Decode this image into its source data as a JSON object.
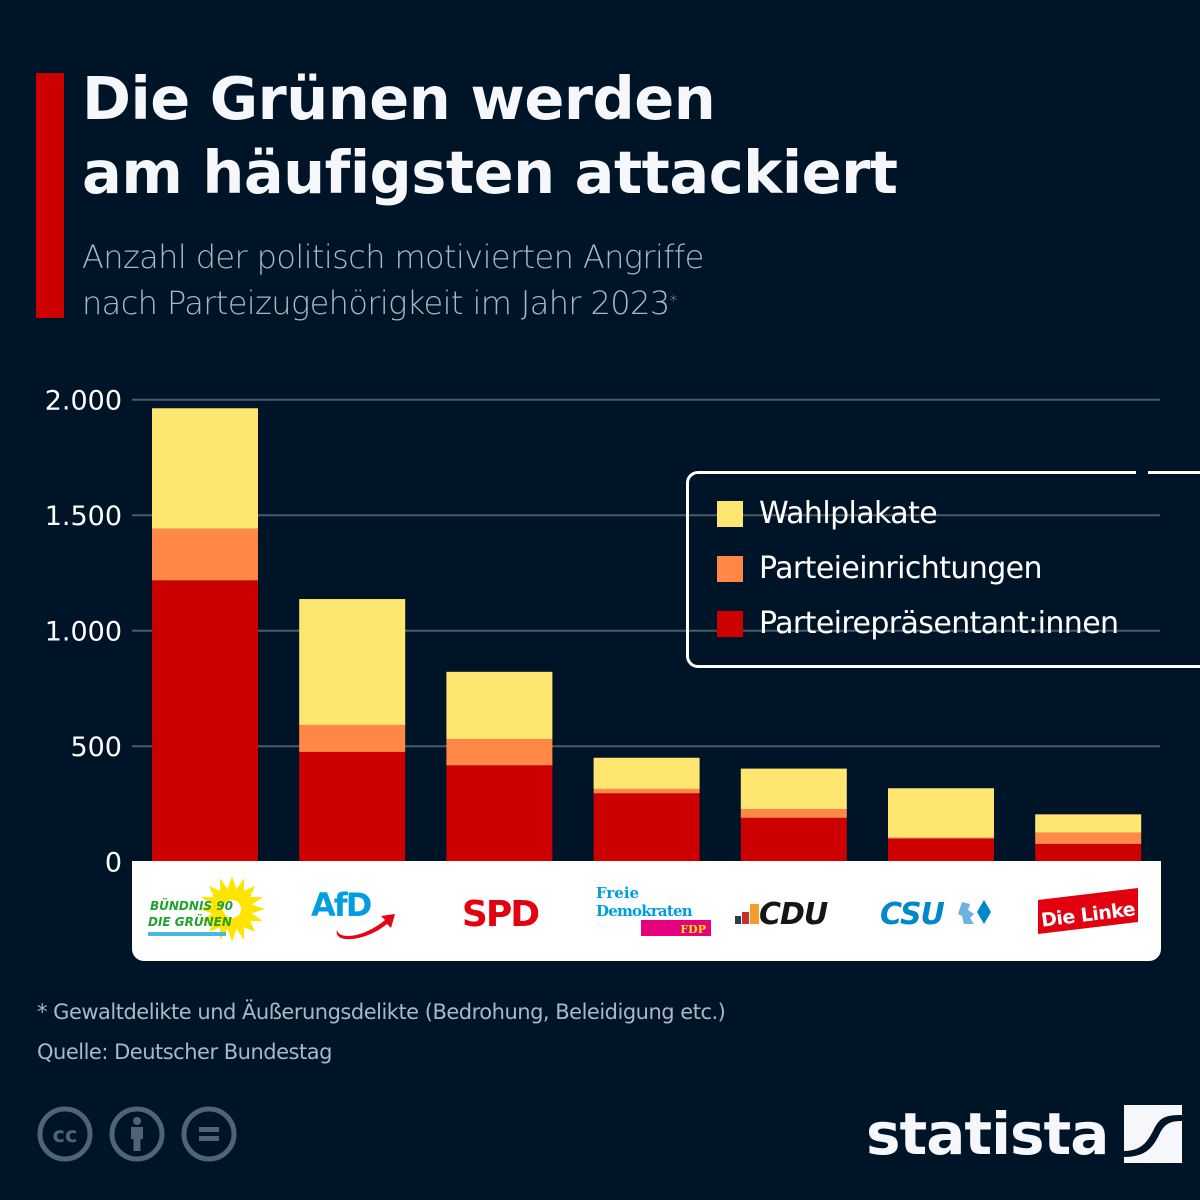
{
  "header": {
    "title_line1": "Die Grünen werden",
    "title_line2": "am häufigsten attackiert",
    "subtitle_line1": "Anzahl der politisch motivierten Angriffe",
    "subtitle_line2": "nach Parteizugehörigkeit im Jahr 2023",
    "subtitle_marker": "*"
  },
  "colors": {
    "background": "#001428",
    "accent": "#cc0000",
    "wahlplakate": "#ffe671",
    "parteieinrichtungen": "#ff8846",
    "parteireprasentanten": "#cc0000",
    "grid": "#4c5a68",
    "muted_text": "#a8b8c6"
  },
  "chart_data": {
    "type": "bar",
    "stacked": true,
    "title": "Die Grünen werden am häufigsten attackiert",
    "subtitle": "Anzahl der politisch motivierten Angriffe nach Parteizugehörigkeit im Jahr 2023*",
    "xlabel": "",
    "ylabel": "",
    "ylim": [
      0,
      2000
    ],
    "yticks": [
      0,
      500,
      1000,
      1500,
      2000
    ],
    "ytick_labels": [
      "0",
      "500",
      "1.000",
      "1.500",
      "2.000"
    ],
    "grid": true,
    "legend_position": "top-right",
    "categories": [
      "Bündnis 90 / Die Grünen",
      "AfD",
      "SPD",
      "FDP",
      "CDU",
      "CSU",
      "Die Linke"
    ],
    "series": [
      {
        "name": "Parteirepräsentant:innen",
        "color": "#cc0000",
        "values": [
          1218,
          475,
          417,
          296,
          190,
          100,
          77
        ]
      },
      {
        "name": "Parteieinrichtungen",
        "color": "#ff8846",
        "values": [
          224,
          117,
          114,
          19,
          38,
          4,
          49
        ]
      },
      {
        "name": "Wahlplakate",
        "color": "#ffe671",
        "values": [
          521,
          545,
          291,
          135,
          175,
          214,
          79
        ]
      }
    ]
  },
  "legend": {
    "items": [
      {
        "label": "Wahlplakate",
        "color": "#ffe671"
      },
      {
        "label": "Parteieinrichtungen",
        "color": "#ff8846"
      },
      {
        "label": "Parteirepräsentant:innen",
        "color": "#cc0000"
      }
    ]
  },
  "logos": [
    {
      "party": "Bündnis 90 / Die Grünen",
      "line1": "BÜNDNIS 90",
      "line2": "DIE GRÜNEN",
      "icon": "sunflower-icon"
    },
    {
      "party": "AfD",
      "text": "AfD",
      "icon": "arrow-swoosh-icon"
    },
    {
      "party": "SPD",
      "text": "SPD"
    },
    {
      "party": "FDP",
      "line1": "Freie",
      "line2": "Demokraten",
      "tag": "FDP"
    },
    {
      "party": "CDU",
      "text": "CDU",
      "icon": "bars-icon"
    },
    {
      "party": "CSU",
      "text": "CSU",
      "icon": "lion-diamond-icon"
    },
    {
      "party": "Die Linke",
      "text": "Die Linke"
    }
  ],
  "footer": {
    "footnote": "* Gewaltdelikte und Äußerungsdelikte (Bedrohung, Beleidigung etc.)",
    "source": "Quelle: Deutscher Bundestag",
    "license_icons": [
      "cc-icon",
      "attribution-icon",
      "no-derivatives-icon"
    ],
    "brand": "statista"
  }
}
